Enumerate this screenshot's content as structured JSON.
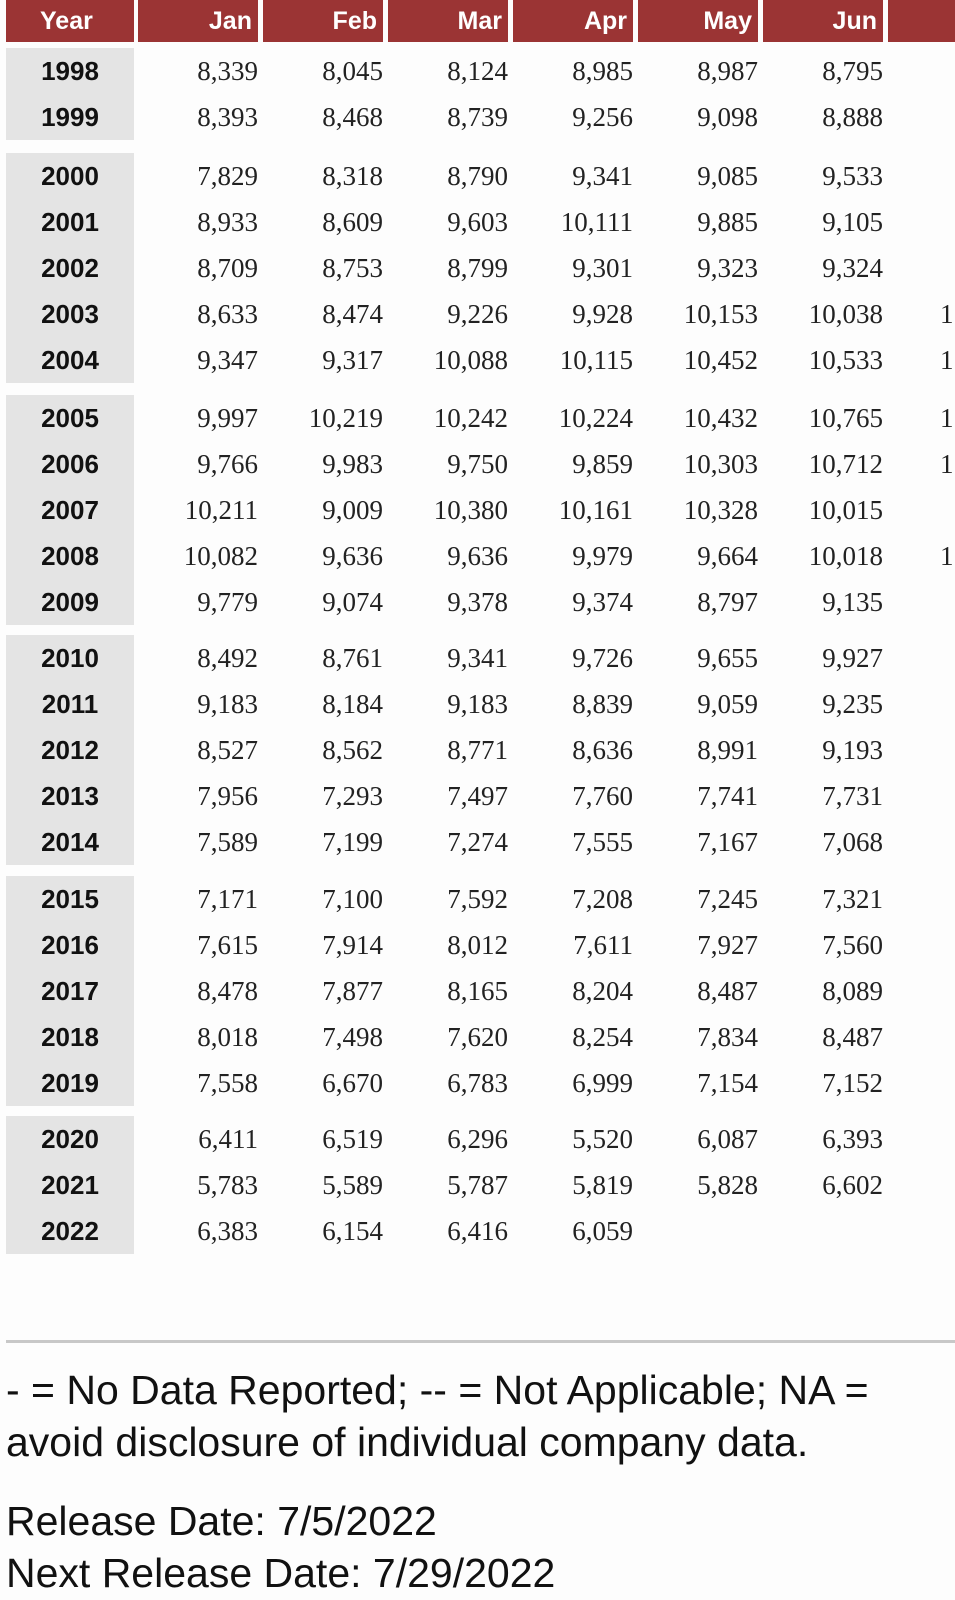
{
  "columns": [
    "Year",
    "Jan",
    "Feb",
    "Mar",
    "Apr",
    "May",
    "Jun"
  ],
  "rows": [
    {
      "year": "1998",
      "values": [
        "8,339",
        "8,045",
        "8,124",
        "8,985",
        "8,987",
        "8,795"
      ],
      "edge": ""
    },
    {
      "year": "1999",
      "values": [
        "8,393",
        "8,468",
        "8,739",
        "9,256",
        "9,098",
        "8,888"
      ],
      "edge": ""
    },
    {
      "year": "2000",
      "values": [
        "7,829",
        "8,318",
        "8,790",
        "9,341",
        "9,085",
        "9,533"
      ],
      "edge": ""
    },
    {
      "year": "2001",
      "values": [
        "8,933",
        "8,609",
        "9,603",
        "10,111",
        "9,885",
        "9,105"
      ],
      "edge": ""
    },
    {
      "year": "2002",
      "values": [
        "8,709",
        "8,753",
        "8,799",
        "9,301",
        "9,323",
        "9,324"
      ],
      "edge": ""
    },
    {
      "year": "2003",
      "values": [
        "8,633",
        "8,474",
        "9,226",
        "9,928",
        "10,153",
        "10,038"
      ],
      "edge": "1"
    },
    {
      "year": "2004",
      "values": [
        "9,347",
        "9,317",
        "10,088",
        "10,115",
        "10,452",
        "10,533"
      ],
      "edge": "1"
    },
    {
      "year": "2005",
      "values": [
        "9,997",
        "10,219",
        "10,242",
        "10,224",
        "10,432",
        "10,765"
      ],
      "edge": "1"
    },
    {
      "year": "2006",
      "values": [
        "9,766",
        "9,983",
        "9,750",
        "9,859",
        "10,303",
        "10,712"
      ],
      "edge": "1"
    },
    {
      "year": "2007",
      "values": [
        "10,211",
        "9,009",
        "10,380",
        "10,161",
        "10,328",
        "10,015"
      ],
      "edge": ""
    },
    {
      "year": "2008",
      "values": [
        "10,082",
        "9,636",
        "9,636",
        "9,979",
        "9,664",
        "10,018"
      ],
      "edge": "1"
    },
    {
      "year": "2009",
      "values": [
        "9,779",
        "9,074",
        "9,378",
        "9,374",
        "8,797",
        "9,135"
      ],
      "edge": ""
    },
    {
      "year": "2010",
      "values": [
        "8,492",
        "8,761",
        "9,341",
        "9,726",
        "9,655",
        "9,927"
      ],
      "edge": ""
    },
    {
      "year": "2011",
      "values": [
        "9,183",
        "8,184",
        "9,183",
        "8,839",
        "9,059",
        "9,235"
      ],
      "edge": ""
    },
    {
      "year": "2012",
      "values": [
        "8,527",
        "8,562",
        "8,771",
        "8,636",
        "8,991",
        "9,193"
      ],
      "edge": ""
    },
    {
      "year": "2013",
      "values": [
        "7,956",
        "7,293",
        "7,497",
        "7,760",
        "7,741",
        "7,731"
      ],
      "edge": ""
    },
    {
      "year": "2014",
      "values": [
        "7,589",
        "7,199",
        "7,274",
        "7,555",
        "7,167",
        "7,068"
      ],
      "edge": ""
    },
    {
      "year": "2015",
      "values": [
        "7,171",
        "7,100",
        "7,592",
        "7,208",
        "7,245",
        "7,321"
      ],
      "edge": ""
    },
    {
      "year": "2016",
      "values": [
        "7,615",
        "7,914",
        "8,012",
        "7,611",
        "7,927",
        "7,560"
      ],
      "edge": ""
    },
    {
      "year": "2017",
      "values": [
        "8,478",
        "7,877",
        "8,165",
        "8,204",
        "8,487",
        "8,089"
      ],
      "edge": ""
    },
    {
      "year": "2018",
      "values": [
        "8,018",
        "7,498",
        "7,620",
        "8,254",
        "7,834",
        "8,487"
      ],
      "edge": ""
    },
    {
      "year": "2019",
      "values": [
        "7,558",
        "6,670",
        "6,783",
        "6,999",
        "7,154",
        "7,152"
      ],
      "edge": ""
    },
    {
      "year": "2020",
      "values": [
        "6,411",
        "6,519",
        "6,296",
        "5,520",
        "6,087",
        "6,393"
      ],
      "edge": ""
    },
    {
      "year": "2021",
      "values": [
        "5,783",
        "5,589",
        "5,787",
        "5,819",
        "5,828",
        "6,602"
      ],
      "edge": ""
    },
    {
      "year": "2022",
      "values": [
        "6,383",
        "6,154",
        "6,416",
        "6,059",
        "",
        ""
      ],
      "edge": ""
    }
  ],
  "footnote": {
    "line1": "- = No Data Reported;  -- = Not Applicable;  NA =",
    "line2": "avoid disclosure of individual company data.",
    "release": "Release Date: 7/5/2022",
    "next_release": "Next Release Date: 7/29/2022"
  }
}
